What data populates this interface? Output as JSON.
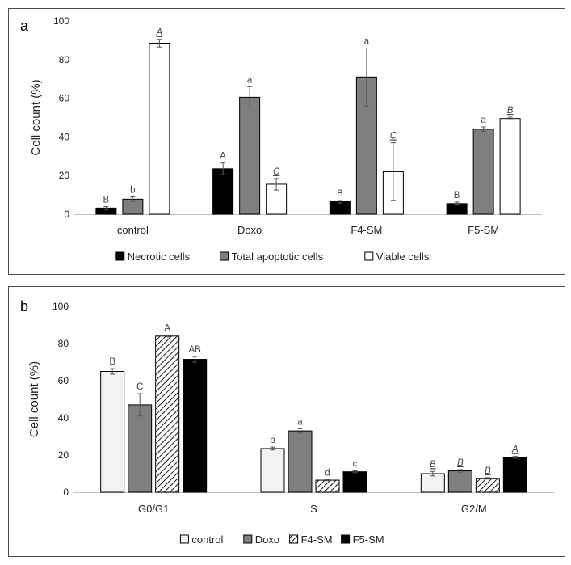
{
  "chart_data": [
    {
      "type": "bar",
      "panel_label": "a",
      "ylabel": "Cell count (%)",
      "ylim": [
        0,
        100
      ],
      "yticks": [
        "0",
        "20",
        "40",
        "60",
        "80",
        "100"
      ],
      "categories": [
        "control",
        "Doxo",
        "F4-SM",
        "F5-SM"
      ],
      "legend_position": "bottom",
      "series": [
        {
          "name": "Necrotic cells",
          "color": "#000000",
          "pattern": "solid",
          "values": [
            3.2,
            23.5,
            6.5,
            5.5
          ],
          "errors": [
            0.8,
            3.0,
            0.7,
            0.8
          ],
          "labels": [
            "B",
            "A",
            "B",
            "B"
          ],
          "label_italic": [
            false,
            false,
            false,
            false
          ]
        },
        {
          "name": "Total apoptotic cells",
          "color": "#7f7f7f",
          "pattern": "solid",
          "values": [
            7.8,
            60.5,
            71.0,
            44.0
          ],
          "errors": [
            1.2,
            5.5,
            15.0,
            1.2
          ],
          "labels": [
            "b",
            "a",
            "a",
            "a"
          ],
          "label_italic": [
            false,
            false,
            false,
            false
          ]
        },
        {
          "name": "Viable cells",
          "color": "#ffffff",
          "pattern": "solid",
          "values": [
            88.5,
            15.5,
            22.0,
            49.5
          ],
          "errors": [
            2.0,
            3.0,
            15.0,
            0.7
          ],
          "labels": [
            "A",
            "C",
            "C",
            "B"
          ],
          "label_italic": [
            true,
            true,
            true,
            true
          ]
        }
      ]
    },
    {
      "type": "bar",
      "panel_label": "b",
      "ylabel": "Cell count (%)",
      "ylim": [
        0,
        100
      ],
      "yticks": [
        "0",
        "20",
        "40",
        "60",
        "80",
        "100"
      ],
      "categories": [
        "G0/G1",
        "S",
        "G2/M"
      ],
      "legend_position": "bottom",
      "series": [
        {
          "name": "control",
          "color": "#f2f2f2",
          "pattern": "solid",
          "values": [
            65.0,
            23.5,
            10.0
          ],
          "errors": [
            1.5,
            0.8,
            1.2
          ],
          "labels": [
            "B",
            "b",
            "B"
          ],
          "label_italic": [
            false,
            false,
            true
          ]
        },
        {
          "name": "Doxo",
          "color": "#7f7f7f",
          "pattern": "solid",
          "values": [
            47.0,
            33.0,
            11.5
          ],
          "errors": [
            6.0,
            1.2,
            0.7
          ],
          "labels": [
            "C",
            "a",
            "B"
          ],
          "label_italic": [
            false,
            false,
            true
          ]
        },
        {
          "name": "F4-SM",
          "color": "#ffffff",
          "pattern": "hatch",
          "values": [
            84.0,
            6.5,
            7.5
          ],
          "errors": [
            0.5,
            0.3,
            0.4
          ],
          "labels": [
            "A",
            "d",
            "B"
          ],
          "label_italic": [
            false,
            false,
            true
          ]
        },
        {
          "name": "F5-SM",
          "color": "#000000",
          "pattern": "solid",
          "values": [
            71.5,
            11.0,
            18.8
          ],
          "errors": [
            1.5,
            0.5,
            0.5
          ],
          "labels": [
            "AB",
            "c",
            "A"
          ],
          "label_italic": [
            false,
            false,
            true
          ]
        }
      ]
    }
  ]
}
